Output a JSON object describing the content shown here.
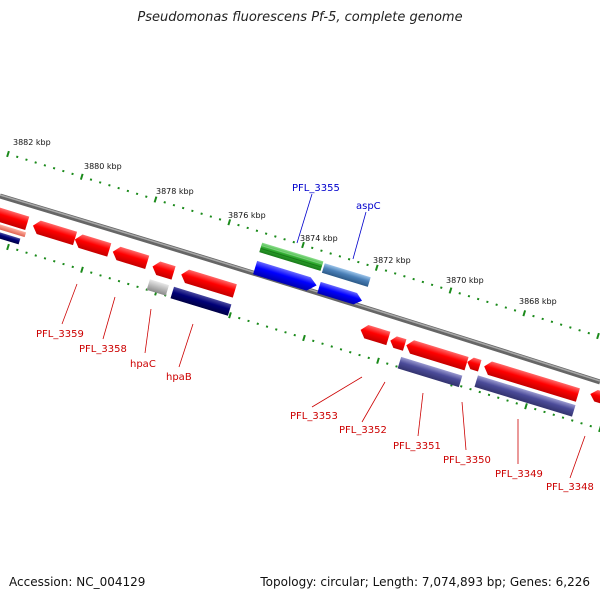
{
  "title": "Pseudomonas fluorescens Pf-5, complete genome",
  "footer": {
    "accession": "Accession: NC_004129",
    "summary": "Topology: circular; Length: 7,074,893 bp; Genes: 6,226"
  },
  "colors": {
    "backbone": "#7f7f7f",
    "tick": "#1a8a1a",
    "red_gene": "#ff0000",
    "blue_gene": "#0000ff",
    "navy_gene": "#000077",
    "purple_gene": "#4b4b99",
    "steel_gene": "#4a80b8",
    "green_gene": "#2eaa2e",
    "grey_gene": "#b8b8b8",
    "forward_label": "#0000cc",
    "reverse_label": "#cc0000"
  },
  "kbp_labels": [
    "3882 kbp",
    "3880 kbp",
    "3878 kbp",
    "3876 kbp",
    "3874 kbp",
    "3872 kbp",
    "3870 kbp",
    "3868 kbp"
  ],
  "forward_labels": [
    "PFL_3355",
    "aspC"
  ],
  "reverse_labels": [
    "PFL_3359",
    "PFL_3358",
    "hpaC",
    "hpaB",
    "PFL_3353",
    "PFL_3352",
    "PFL_3351",
    "PFL_3350",
    "PFL_3349",
    "PFL_3348"
  ]
}
